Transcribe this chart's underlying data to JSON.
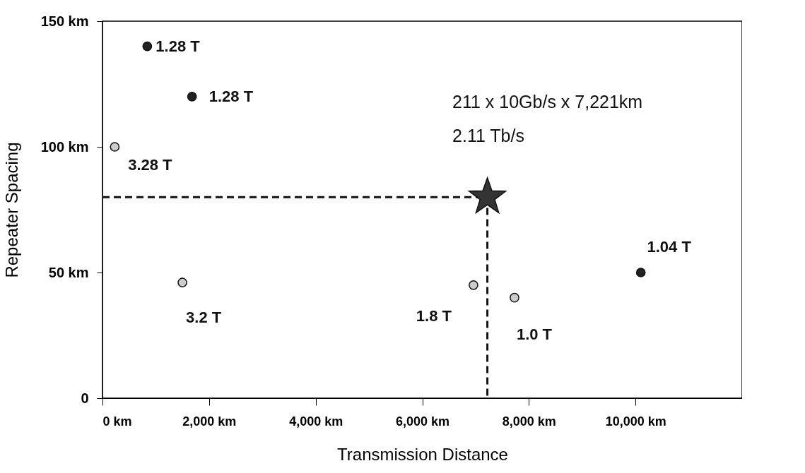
{
  "chart_data": {
    "type": "scatter",
    "xlabel": "Transmission Distance",
    "ylabel": "Repeater Spacing",
    "xlim": [
      0,
      12000
    ],
    "ylim": [
      0,
      150
    ],
    "xticks": [
      {
        "value": 0,
        "label": "0 km"
      },
      {
        "value": 2000,
        "label": "2,000 km"
      },
      {
        "value": 4000,
        "label": "4,000 km"
      },
      {
        "value": 6000,
        "label": "6,000 km"
      },
      {
        "value": 8000,
        "label": "8,000 km"
      },
      {
        "value": 10000,
        "label": "10,000 km"
      }
    ],
    "yticks": [
      0,
      {
        "value": 50,
        "label": "50 km"
      },
      {
        "value": 100,
        "label": "100 km"
      },
      {
        "value": 150,
        "label": "150 km"
      }
    ],
    "grid": false,
    "series": [
      {
        "type": "line",
        "color": "#111111",
        "line_style": "dashed",
        "marker": "none",
        "x": [
          0,
          7221,
          7221
        ],
        "values": [
          80,
          80,
          0
        ]
      },
      {
        "color": "#222222",
        "marker": "circle",
        "x": [
          840,
          1680,
          10100
        ],
        "values": [
          140,
          120,
          50
        ]
      },
      {
        "color": "#cccccc",
        "marker": "circle",
        "x": [
          230,
          1500,
          6960,
          7730
        ],
        "values": [
          100,
          46,
          45,
          40
        ]
      },
      {
        "color": "#333333",
        "marker": "star",
        "x": [
          7221
        ],
        "values": [
          80
        ]
      }
    ],
    "annotations": [
      {
        "text": "1.28 T",
        "x": 840,
        "y": 140
      },
      {
        "text": "1.28 T",
        "x": 1680,
        "y": 120
      },
      {
        "text": "1.04 T",
        "x": 10100,
        "y": 50
      },
      {
        "text": "3.28 T",
        "x": 230,
        "y": 100
      },
      {
        "text": "3.2 T",
        "x": 1500,
        "y": 46
      },
      {
        "text": "1.8 T",
        "x": 6960,
        "y": 45
      },
      {
        "text": "1.0 T",
        "x": 7730,
        "y": 40
      },
      "211 x 10Gb/s x 7,221km",
      "2.11 Tb/s"
    ]
  }
}
